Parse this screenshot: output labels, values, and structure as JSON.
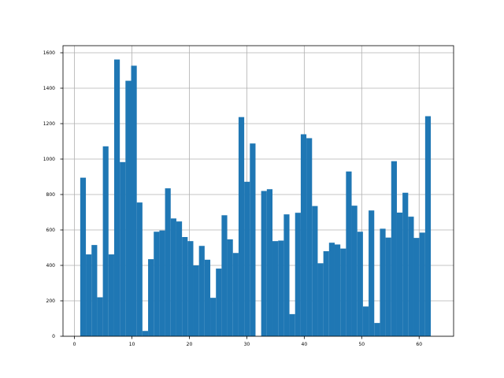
{
  "chart_data": {
    "type": "bar",
    "title": "",
    "xlabel": "",
    "ylabel": "",
    "xlim": [
      -2,
      66
    ],
    "ylim": [
      0,
      1640
    ],
    "grid": true,
    "bar_color": "#1f77b4",
    "grid_color": "#b0b0b0",
    "xticks": [
      0,
      10,
      20,
      30,
      40,
      50,
      60
    ],
    "yticks": [
      0,
      200,
      400,
      600,
      800,
      1000,
      1200,
      1400,
      1600
    ],
    "bin_edges": [
      1.0,
      1.984,
      2.969,
      3.953,
      4.938,
      5.922,
      6.906,
      7.891,
      8.875,
      9.859,
      10.844,
      11.828,
      12.813,
      13.797,
      14.781,
      15.766,
      16.75,
      17.734,
      18.719,
      19.703,
      20.688,
      21.672,
      22.656,
      23.641,
      24.625,
      25.609,
      26.594,
      27.578,
      28.563,
      29.547,
      30.531,
      31.516,
      32.5,
      33.484,
      34.469,
      35.453,
      36.438,
      37.422,
      38.406,
      39.391,
      40.375,
      41.359,
      42.344,
      43.328,
      44.313,
      45.297,
      46.281,
      47.266,
      48.25,
      49.234,
      50.219,
      51.203,
      52.188,
      53.172,
      54.156,
      55.141,
      56.125,
      57.109,
      58.094,
      59.078,
      60.063,
      61.047,
      62.031,
      63.0
    ],
    "counts": [
      895,
      462,
      515,
      220,
      1072,
      462,
      1562,
      983,
      1442,
      1527,
      755,
      30,
      435,
      590,
      597,
      835,
      665,
      648,
      560,
      537,
      400,
      510,
      432,
      217,
      382,
      683,
      547,
      470,
      1237,
      872,
      1088,
      0,
      820,
      830,
      537,
      540,
      688,
      125,
      697,
      1140,
      1118,
      735,
      412,
      480,
      528,
      518,
      495,
      930,
      737,
      590,
      168,
      710,
      75,
      607,
      557,
      988,
      698,
      810,
      675,
      555,
      585,
      1242,
      0
    ]
  }
}
